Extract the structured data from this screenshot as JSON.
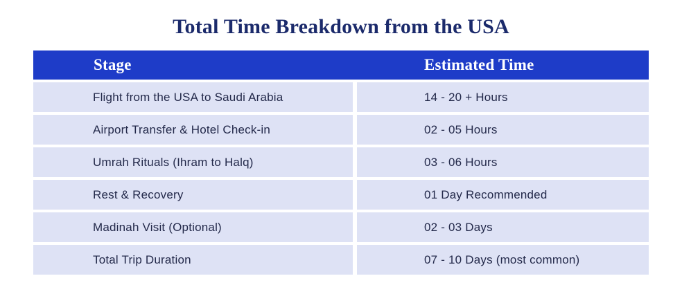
{
  "theme": {
    "page-bg": "#ffffff",
    "title-color": "#1b2a6b",
    "header-bg": "#1e3cc8",
    "header-text": "#ffffff",
    "row-bg": "#dee2f5",
    "row-text": "#23294a"
  },
  "chart_data": {
    "type": "table",
    "title": "Total Time Breakdown from the USA",
    "columns": [
      "Stage",
      "Estimated Time"
    ],
    "rows": [
      [
        "Flight from the USA to Saudi Arabia",
        "14 - 20 + Hours"
      ],
      [
        "Airport Transfer & Hotel Check-in",
        "02 - 05 Hours"
      ],
      [
        "Umrah Rituals (Ihram to Halq)",
        "03 - 06 Hours"
      ],
      [
        "Rest & Recovery",
        "01 Day Recommended"
      ],
      [
        "Madinah Visit (Optional)",
        "02 - 03 Days"
      ],
      [
        "Total Trip Duration",
        "07 - 10 Days (most common)"
      ]
    ],
    "layout": {
      "legend": "none",
      "grid": "white-separators-between-cells",
      "header_style": "solid-blue-bar"
    }
  }
}
